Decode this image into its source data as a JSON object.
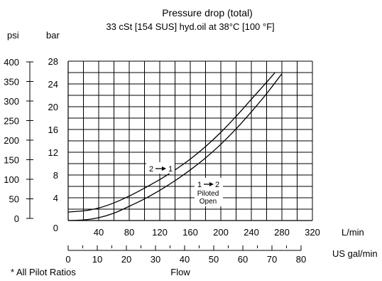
{
  "chart_data": {
    "type": "line",
    "title": "Pressure drop (total)",
    "subtitle": "33 cSt [154 SUS] hyd.oil at 38°C [100 °F]",
    "units": {
      "psi": "psi",
      "bar": "bar",
      "lmin": "L/min",
      "gpm": "US gal/min"
    },
    "xlabel": "Flow",
    "footnote": "* All Pilot Ratios",
    "x_lmin_ticks": [
      40,
      80,
      120,
      160,
      200,
      240,
      280,
      320
    ],
    "x_gpm_ticks": [
      0,
      10,
      20,
      30,
      40,
      50,
      60,
      70,
      80
    ],
    "y_bar_ticks": [
      0,
      4,
      8,
      12,
      16,
      20,
      24,
      28
    ],
    "y_psi_ticks": [
      0,
      50,
      100,
      150,
      200,
      250,
      300,
      350,
      400
    ],
    "xlim": [
      0,
      320
    ],
    "ylim": [
      0,
      28
    ],
    "grid": true,
    "series": [
      {
        "name": "2→1",
        "label_lines": [
          "2",
          "1"
        ],
        "x": [
          0,
          20,
          40,
          60,
          80,
          100,
          120,
          140,
          160,
          180,
          200,
          220,
          240,
          260,
          271
        ],
        "y": [
          1.5,
          1.7,
          2.2,
          3.1,
          4.3,
          5.7,
          7.2,
          8.9,
          10.8,
          13.0,
          15.5,
          18.3,
          21.3,
          24.3,
          26.0
        ]
      },
      {
        "name": "1→2 Piloted Open",
        "label_lines": [
          "1",
          "2",
          "Piloted",
          "Open"
        ],
        "x": [
          0,
          20,
          40,
          60,
          80,
          100,
          120,
          140,
          160,
          180,
          200,
          220,
          240,
          260,
          280
        ],
        "y": [
          0,
          0.1,
          0.5,
          1.3,
          2.5,
          3.8,
          5.3,
          7.0,
          8.9,
          11.0,
          13.4,
          16.1,
          19.1,
          22.3,
          25.8
        ]
      }
    ]
  }
}
